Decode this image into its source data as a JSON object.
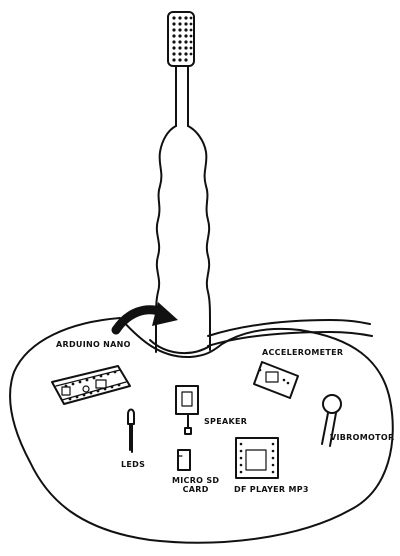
{
  "labels": {
    "arduino_nano": "ARDUINO NANO",
    "accelerometer": "ACCELEROMETER",
    "speaker": "SPEAKER",
    "vibromotor": "VIBROMOTOR",
    "leds": "LEDS",
    "micro_sd_line1": "MICRO SD",
    "micro_sd_line2": "CARD",
    "df_player": "DF PLAYER MP3"
  },
  "colors": {
    "ink": "#111111",
    "paper": "#ffffff"
  }
}
